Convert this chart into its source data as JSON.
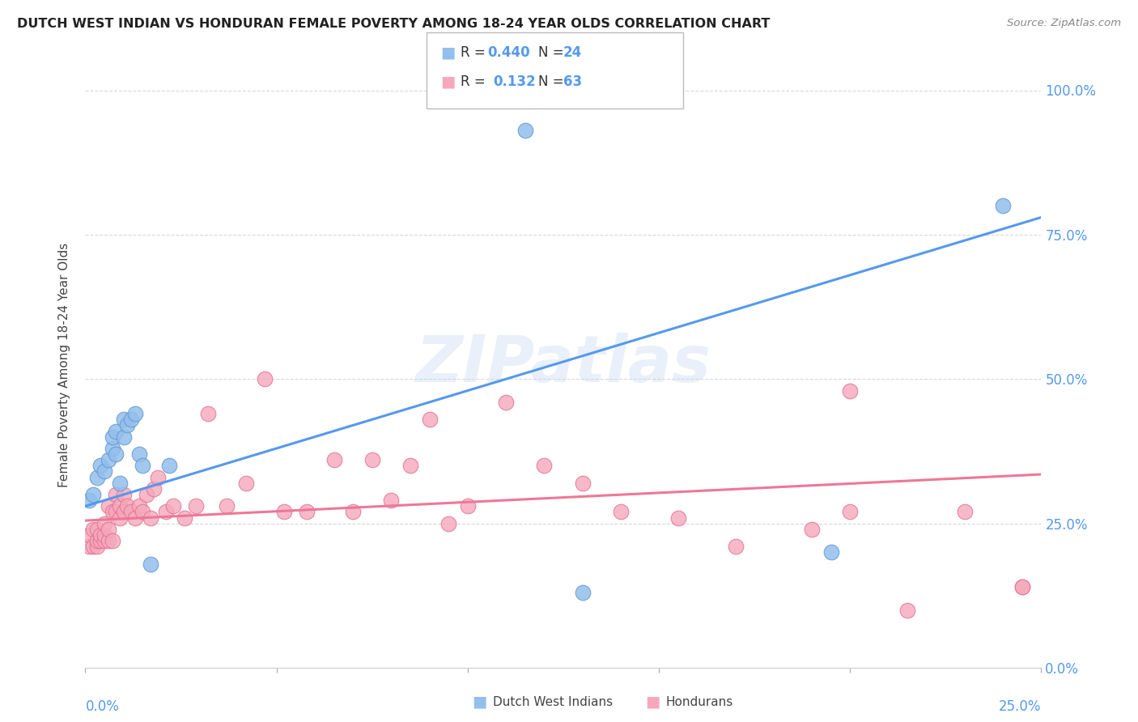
{
  "title": "DUTCH WEST INDIAN VS HONDURAN FEMALE POVERTY AMONG 18-24 YEAR OLDS CORRELATION CHART",
  "source": "Source: ZipAtlas.com",
  "ylabel": "Female Poverty Among 18-24 Year Olds",
  "xlim": [
    0.0,
    0.25
  ],
  "ylim": [
    0.0,
    1.05
  ],
  "background_color": "#ffffff",
  "grid_color": "#d8d8d8",
  "dutch_color": "#92bfed",
  "honduran_color": "#f5a8bc",
  "dutch_edge_color": "#6699cc",
  "honduran_edge_color": "#e07090",
  "line_dutch_color": "#5599ee",
  "line_honduran_color": "#ee7799",
  "watermark": "ZIPatlas",
  "legend_R_dutch": "0.440",
  "legend_N_dutch": "24",
  "legend_R_honduran": "0.132",
  "legend_N_honduran": "63",
  "dutch_x": [
    0.001,
    0.002,
    0.003,
    0.004,
    0.005,
    0.006,
    0.007,
    0.007,
    0.008,
    0.008,
    0.009,
    0.01,
    0.01,
    0.011,
    0.012,
    0.013,
    0.014,
    0.015,
    0.017,
    0.022,
    0.115,
    0.13,
    0.195,
    0.24
  ],
  "dutch_y": [
    0.29,
    0.3,
    0.33,
    0.35,
    0.34,
    0.36,
    0.38,
    0.4,
    0.37,
    0.41,
    0.32,
    0.4,
    0.43,
    0.42,
    0.43,
    0.44,
    0.37,
    0.35,
    0.18,
    0.35,
    0.93,
    0.13,
    0.2,
    0.8
  ],
  "honduran_x": [
    0.001,
    0.001,
    0.002,
    0.002,
    0.003,
    0.003,
    0.003,
    0.004,
    0.004,
    0.005,
    0.005,
    0.005,
    0.006,
    0.006,
    0.006,
    0.007,
    0.007,
    0.008,
    0.008,
    0.009,
    0.009,
    0.01,
    0.01,
    0.011,
    0.012,
    0.013,
    0.014,
    0.015,
    0.016,
    0.017,
    0.018,
    0.019,
    0.021,
    0.023,
    0.026,
    0.029,
    0.032,
    0.037,
    0.042,
    0.047,
    0.052,
    0.058,
    0.065,
    0.07,
    0.075,
    0.08,
    0.085,
    0.09,
    0.095,
    0.1,
    0.11,
    0.12,
    0.13,
    0.14,
    0.155,
    0.17,
    0.19,
    0.2,
    0.215,
    0.23,
    0.245,
    0.2,
    0.245
  ],
  "honduran_y": [
    0.21,
    0.23,
    0.21,
    0.24,
    0.21,
    0.22,
    0.24,
    0.22,
    0.23,
    0.22,
    0.23,
    0.25,
    0.22,
    0.24,
    0.28,
    0.22,
    0.27,
    0.27,
    0.3,
    0.26,
    0.28,
    0.27,
    0.3,
    0.28,
    0.27,
    0.26,
    0.28,
    0.27,
    0.3,
    0.26,
    0.31,
    0.33,
    0.27,
    0.28,
    0.26,
    0.28,
    0.44,
    0.28,
    0.32,
    0.5,
    0.27,
    0.27,
    0.36,
    0.27,
    0.36,
    0.29,
    0.35,
    0.43,
    0.25,
    0.28,
    0.46,
    0.35,
    0.32,
    0.27,
    0.26,
    0.21,
    0.24,
    0.27,
    0.1,
    0.27,
    0.14,
    0.48,
    0.14
  ],
  "dutch_line_x0": 0.0,
  "dutch_line_y0": 0.28,
  "dutch_line_x1": 0.25,
  "dutch_line_y1": 0.78,
  "hon_line_x0": 0.0,
  "hon_line_y0": 0.255,
  "hon_line_x1": 0.25,
  "hon_line_y1": 0.335
}
